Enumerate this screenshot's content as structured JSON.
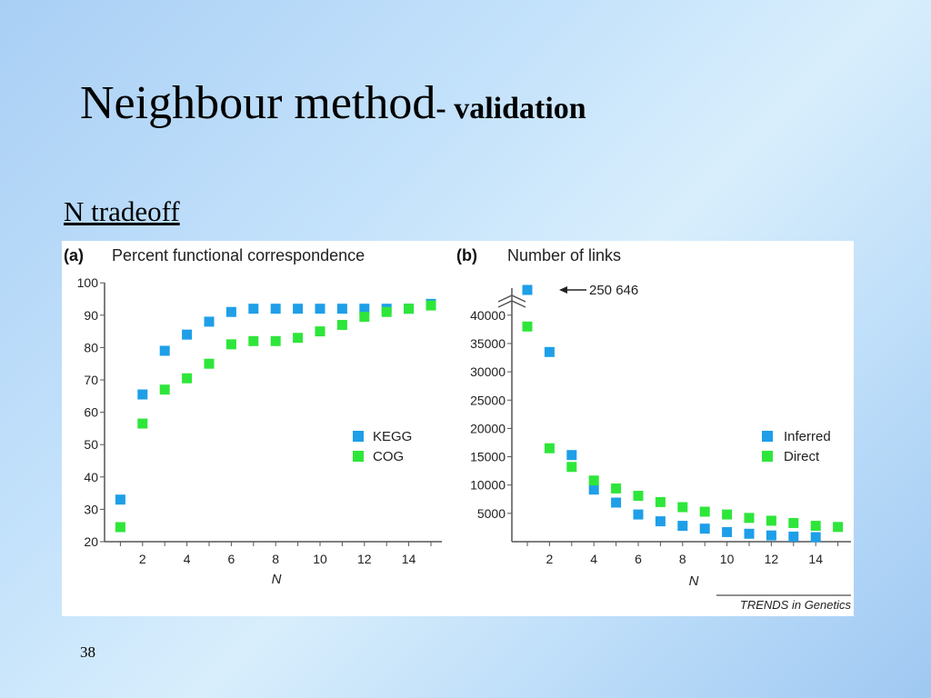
{
  "slide": {
    "title_main": "Neighbour  method",
    "title_sub": "- validation",
    "subtitle": "N tradeoff",
    "page_number": "38"
  },
  "figure": {
    "source": "TRENDS in Genetics"
  },
  "colors": {
    "kegg_inferred": "#1e9fe8",
    "cog_direct": "#2ee63a",
    "axis": "#555555"
  },
  "chart_data": [
    {
      "type": "scatter",
      "panel_label": "(a)",
      "title": "Percent functional correspondence",
      "xlabel": "N",
      "ylabel": "",
      "xlim": [
        0,
        15
      ],
      "ylim": [
        20,
        100
      ],
      "x_ticks": [
        2,
        4,
        6,
        8,
        10,
        12,
        14
      ],
      "y_ticks": [
        20,
        30,
        40,
        50,
        60,
        70,
        80,
        90,
        100
      ],
      "legend_position": "lower-right",
      "series": [
        {
          "name": "KEGG",
          "x": [
            1,
            2,
            3,
            4,
            5,
            6,
            7,
            8,
            9,
            10,
            11,
            12,
            13,
            14,
            15
          ],
          "y": [
            33,
            65.5,
            79,
            84,
            88,
            91,
            92,
            92,
            92,
            92,
            92,
            92,
            92,
            92,
            93.5
          ]
        },
        {
          "name": "COG",
          "x": [
            1,
            2,
            3,
            4,
            5,
            6,
            7,
            8,
            9,
            10,
            11,
            12,
            13,
            14,
            15
          ],
          "y": [
            24.5,
            56.5,
            67,
            70.5,
            75,
            81,
            82,
            82,
            83,
            85,
            87,
            89.5,
            91,
            92,
            93
          ]
        }
      ]
    },
    {
      "type": "scatter",
      "panel_label": "(b)",
      "title": "Number of links",
      "xlabel": "N",
      "ylabel": "",
      "xlim": [
        0.5,
        15
      ],
      "ylim": [
        0,
        40000
      ],
      "axis_break": "above 40000",
      "x_ticks": [
        2,
        4,
        6,
        8,
        10,
        12,
        14
      ],
      "y_ticks": [
        5000,
        10000,
        15000,
        20000,
        25000,
        30000,
        35000,
        40000
      ],
      "legend_position": "lower-right",
      "annotation": {
        "text": "250 646",
        "series": "Inferred",
        "x": 1,
        "value": 250646
      },
      "series": [
        {
          "name": "Inferred",
          "x": [
            1,
            2,
            3,
            4,
            5,
            6,
            7,
            8,
            9,
            10,
            11,
            12,
            13,
            14
          ],
          "y": [
            250646,
            33500,
            15300,
            9200,
            6900,
            4800,
            3600,
            2800,
            2300,
            1700,
            1400,
            1100,
            900,
            800
          ]
        },
        {
          "name": "Direct",
          "x": [
            1,
            2,
            3,
            4,
            5,
            6,
            7,
            8,
            9,
            10,
            11,
            12,
            13,
            14,
            15
          ],
          "y": [
            38000,
            16500,
            13200,
            10800,
            9400,
            8100,
            7000,
            6100,
            5300,
            4800,
            4200,
            3700,
            3300,
            2800,
            2600
          ]
        }
      ]
    }
  ]
}
